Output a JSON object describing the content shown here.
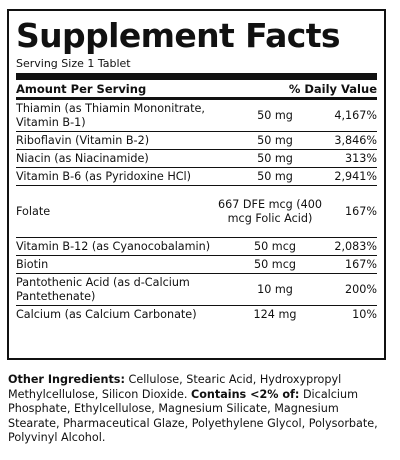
{
  "title": "Supplement Facts",
  "serving": "Serving Size 1 Tablet",
  "header": {
    "left": "Amount Per Serving",
    "right": "% Daily Value"
  },
  "rows": [
    {
      "name": "Thiamin (as Thiamin Mononitrate, Vitamin B-1)",
      "amount": "50 mg",
      "dv": "4,167%"
    },
    {
      "name": "Riboflavin (Vitamin B-2)",
      "amount": "50 mg",
      "dv": "3,846%"
    },
    {
      "name": "Niacin (as Niacinamide)",
      "amount": "50 mg",
      "dv": "313%"
    },
    {
      "name": "Vitamin B-6 (as Pyridoxine HCl)",
      "amount": "50 mg",
      "dv": "2,941%"
    },
    {
      "name": "Folate",
      "amount": "667 DFE mcg (400 mcg Folic Acid)",
      "dv": "167%"
    },
    {
      "name": "Vitamin B-12 (as Cyanocobalamin)",
      "amount": "50 mcg",
      "dv": "2,083%"
    },
    {
      "name": "Biotin",
      "amount": "50 mcg",
      "dv": "167%"
    },
    {
      "name": "Pantothenic Acid (as d-Calcium Pantethenate)",
      "amount": "10 mg",
      "dv": "200%"
    },
    {
      "name": "Calcium (as Calcium Carbonate)",
      "amount": "124 mg",
      "dv": "10%"
    }
  ],
  "ingredients": {
    "label": "Other Ingredients:",
    "text1": " Cellulose, Stearic Acid, Hydroxypropyl Methylcellulose, Silicon Dioxide. ",
    "contains_label": "Contains <2% of:",
    "text2": " Dicalcium Phosphate, Ethylcellulose, Magnesium Silicate, Magnesium Stearate, Pharmaceutical Glaze, Polyethylene Glycol, Polysorbate, Polyvinyl Alcohol."
  }
}
